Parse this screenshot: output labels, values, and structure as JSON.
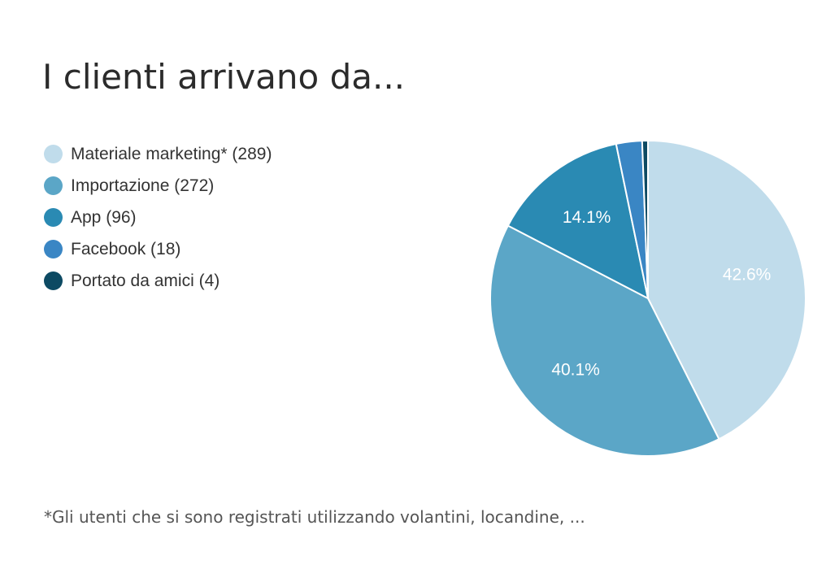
{
  "chart_data": {
    "type": "pie",
    "title": "I clienti arrivano da...",
    "legend_position": "left",
    "slices": [
      {
        "name": "Materiale marketing*",
        "value": 289,
        "percent_label": "42.6%",
        "color": "#c0dceb"
      },
      {
        "name": "Importazione",
        "value": 272,
        "percent_label": "40.1%",
        "color": "#5ba6c7"
      },
      {
        "name": "App",
        "value": 96,
        "percent_label": "14.1%",
        "color": "#2a8ab3"
      },
      {
        "name": "Facebook",
        "value": 18,
        "percent_label": "",
        "color": "#3a86c4"
      },
      {
        "name": "Portato da amici",
        "value": 4,
        "percent_label": "",
        "color": "#0d4a63"
      }
    ],
    "legend": [
      "Materiale marketing* (289)",
      "Importazione (272)",
      "App (96)",
      "Facebook (18)",
      "Portato da amici (4)"
    ],
    "footnote": "*Gli utenti che si sono registrati utilizzando volantini, locandine, ..."
  }
}
